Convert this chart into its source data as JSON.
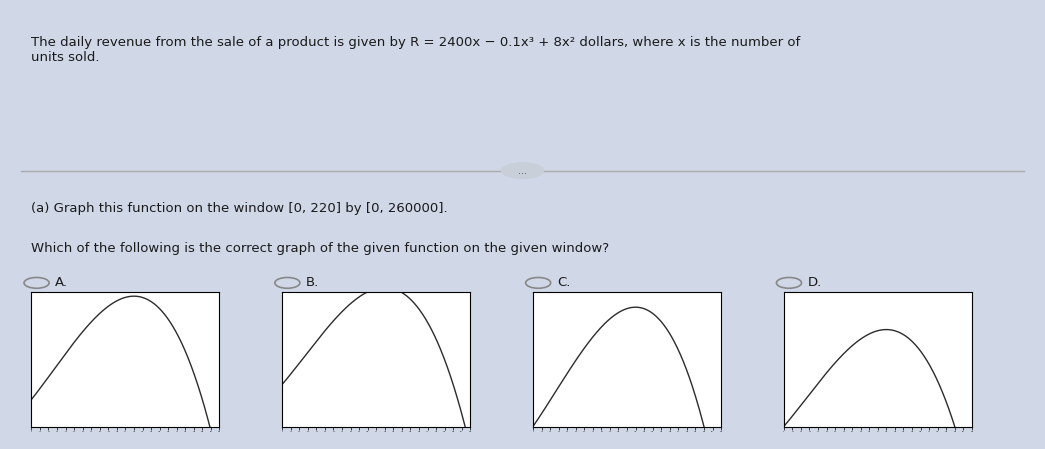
{
  "title_text": "The daily revenue from the sale of a product is given by R = 2400x − 0.1x³ + 8x² dollars, where x is the number of\nunits sold.",
  "part_a_text": "(a) Graph this function on the window [0, 220] by [0, 260000].",
  "question_text": "Which of the following is the correct graph of the given function on the given window?",
  "options": [
    "A.",
    "B.",
    "C.",
    "D."
  ],
  "xmin": 0,
  "xmax": 220,
  "ymin": 0,
  "ymax": 260000,
  "background_color": "#d0d8e8",
  "graph_bg": "#ffffff",
  "curve_color": "#2c2c2c",
  "text_color": "#1a1a1a",
  "radio_color": "#888888",
  "separator_color": "#aaaaaa"
}
